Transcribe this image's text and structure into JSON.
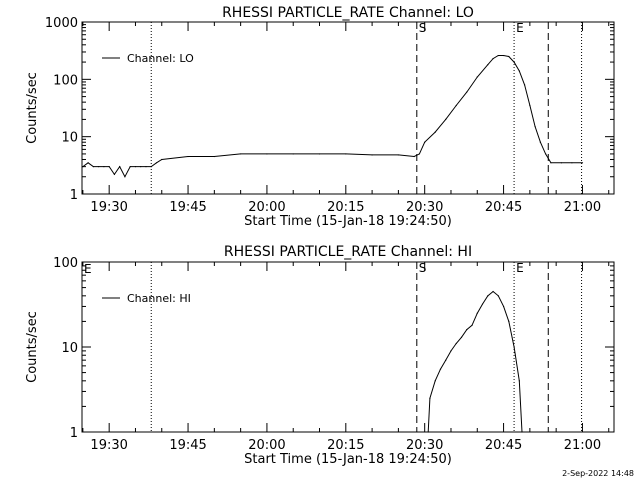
{
  "footer": {
    "timestamp": "2-Sep-2022 14:48"
  },
  "chart_data": [
    {
      "type": "line",
      "title": "RHESSI PARTICLE_RATE Channel: LO",
      "xlabel": "Start Time (15-Jan-18 19:24:50)",
      "ylabel": "Counts/sec",
      "y_scale": "log",
      "ylim": [
        1,
        1000
      ],
      "xlim": [
        "19:24:50",
        "21:06:00"
      ],
      "x_ticks": [
        "19:30",
        "19:45",
        "20:00",
        "20:15",
        "20:30",
        "20:45",
        "21:00"
      ],
      "y_ticks": [
        "1",
        "10",
        "100",
        "1000"
      ],
      "legend": {
        "placement": "top-left"
      },
      "markers": [
        {
          "type": "dotted",
          "time": "19:38:00",
          "label": ""
        },
        {
          "type": "dashed",
          "time": "20:28:30",
          "label": "S"
        },
        {
          "type": "dotted",
          "time": "20:47:00",
          "label": "E"
        },
        {
          "type": "dashed",
          "time": "20:53:30",
          "label": ""
        },
        {
          "type": "dotted",
          "time": "20:59:50",
          "label": ""
        }
      ],
      "series": [
        {
          "name": "Channel: LO",
          "x": [
            "19:25:00",
            "19:26:00",
            "19:27:00",
            "19:28:00",
            "19:29:00",
            "19:30:00",
            "19:31:00",
            "19:32:00",
            "19:33:00",
            "19:34:00",
            "19:35:00",
            "19:36:00",
            "19:37:00",
            "19:38:00",
            "19:39:00",
            "19:40:00",
            "19:45:00",
            "19:50:00",
            "19:55:00",
            "20:00:00",
            "20:05:00",
            "20:10:00",
            "20:15:00",
            "20:20:00",
            "20:25:00",
            "20:28:00",
            "20:29:00",
            "20:30:00",
            "20:32:00",
            "20:34:00",
            "20:36:00",
            "20:38:00",
            "20:40:00",
            "20:42:00",
            "20:43:00",
            "20:44:00",
            "20:45:00",
            "20:46:00",
            "20:47:00",
            "20:48:00",
            "20:49:00",
            "20:50:00",
            "20:51:00",
            "20:52:00",
            "20:53:00",
            "20:54:00",
            "20:56:00",
            "20:58:00",
            "21:00:00"
          ],
          "values": [
            3,
            3.5,
            3,
            3,
            3,
            3,
            2.2,
            3,
            2,
            3,
            3,
            3,
            3,
            3,
            3.5,
            4,
            4.5,
            4.5,
            5,
            5,
            5,
            5,
            5,
            4.8,
            4.8,
            4.5,
            5,
            8,
            12,
            20,
            35,
            60,
            110,
            180,
            230,
            260,
            260,
            250,
            200,
            140,
            80,
            35,
            15,
            8,
            5,
            3.5,
            3.5,
            3.5,
            3.5
          ]
        }
      ]
    },
    {
      "type": "line",
      "title": "RHESSI PARTICLE_RATE Channel: HI",
      "xlabel": "Start Time (15-Jan-18 19:24:50)",
      "ylabel": "Counts/sec",
      "y_scale": "log",
      "ylim": [
        1,
        100
      ],
      "xlim": [
        "19:24:50",
        "21:06:00"
      ],
      "x_ticks": [
        "19:30",
        "19:45",
        "20:00",
        "20:15",
        "20:30",
        "20:45",
        "21:00"
      ],
      "y_ticks": [
        "1",
        "10",
        "100"
      ],
      "legend": {
        "placement": "top-left"
      },
      "corner_label": "E",
      "markers": [
        {
          "type": "dotted",
          "time": "19:38:00",
          "label": ""
        },
        {
          "type": "dashed",
          "time": "20:28:30",
          "label": "S"
        },
        {
          "type": "dotted",
          "time": "20:47:00",
          "label": "E"
        },
        {
          "type": "dashed",
          "time": "20:53:30",
          "label": ""
        },
        {
          "type": "dotted",
          "time": "20:59:50",
          "label": ""
        }
      ],
      "series": [
        {
          "name": "Channel: HI",
          "x": [
            "20:30:40",
            "20:31:00",
            "20:32:00",
            "20:33:00",
            "20:34:00",
            "20:35:00",
            "20:36:00",
            "20:37:00",
            "20:38:00",
            "20:39:00",
            "20:40:00",
            "20:41:00",
            "20:42:00",
            "20:43:00",
            "20:44:00",
            "20:45:00",
            "20:46:00",
            "20:47:00",
            "20:48:00",
            "20:48:30"
          ],
          "values": [
            1,
            2.5,
            4,
            5.5,
            7,
            9,
            11,
            13,
            16,
            18,
            25,
            32,
            40,
            45,
            40,
            30,
            20,
            10,
            4,
            1
          ]
        }
      ]
    }
  ]
}
